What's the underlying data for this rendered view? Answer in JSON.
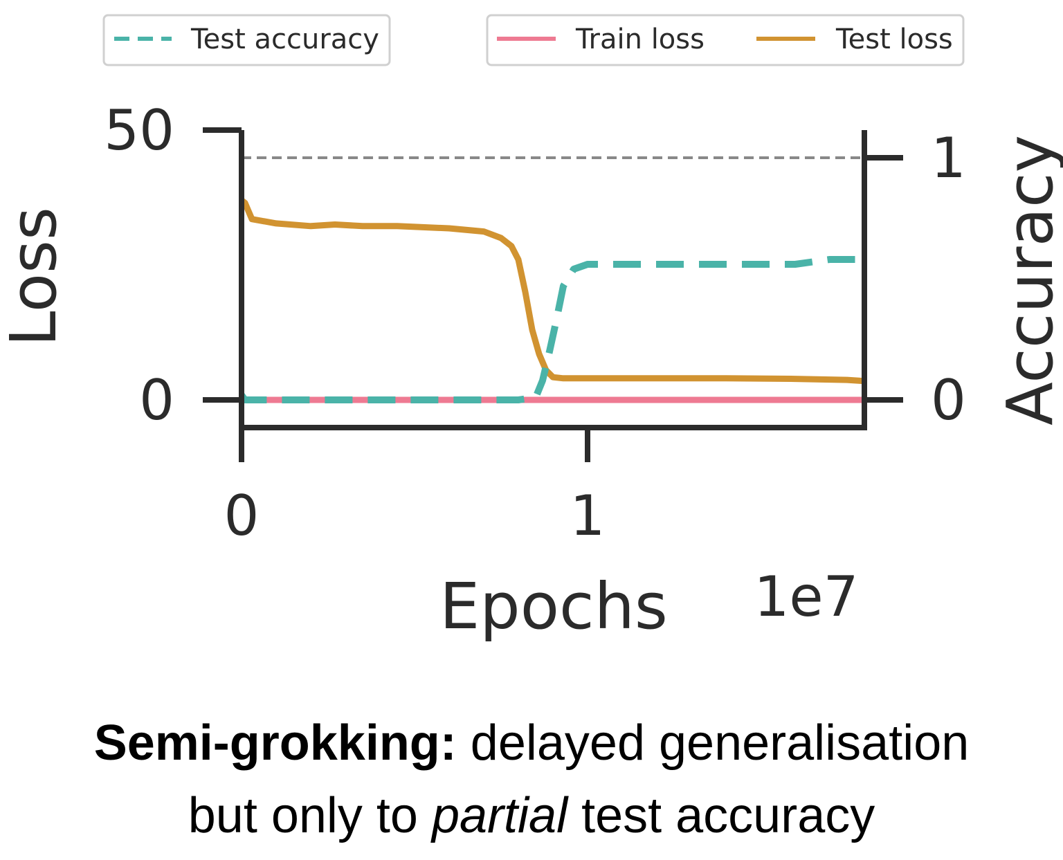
{
  "chart_data": {
    "type": "line",
    "xlabel": "Epochs",
    "x_offset_label": "1e7",
    "ylabel_left": "Loss",
    "ylabel_right": "Accuracy",
    "xlim": [
      0,
      1.8
    ],
    "ylim_left": [
      -5,
      50
    ],
    "ylim_right": [
      0,
      1.0
    ],
    "xticks": [
      0,
      1
    ],
    "yticks_left": [
      0,
      50
    ],
    "yticks_right": [
      0,
      1
    ],
    "reference_line": {
      "axis": "right",
      "value": 1.0,
      "style": "dashed",
      "color": "#888888"
    },
    "legend": [
      {
        "group": "left",
        "entries": [
          {
            "name": "Test accuracy",
            "style": "dashed",
            "color": "#4AB3A8"
          }
        ]
      },
      {
        "group": "right",
        "entries": [
          {
            "name": "Train loss",
            "style": "solid",
            "color": "#EE7A92"
          },
          {
            "name": "Test loss",
            "style": "solid",
            "color": "#D19331"
          }
        ]
      }
    ],
    "series": [
      {
        "name": "Train loss",
        "axis": "left",
        "color": "#EE7A92",
        "style": "solid",
        "x": [
          0,
          0.2,
          0.4,
          0.6,
          0.8,
          1.0,
          1.2,
          1.4,
          1.6,
          1.8
        ],
        "y": [
          0,
          0,
          0,
          0,
          0,
          0,
          0,
          0,
          0,
          0
        ]
      },
      {
        "name": "Test loss",
        "axis": "left",
        "color": "#D19331",
        "style": "solid",
        "x": [
          0.0,
          0.01,
          0.03,
          0.1,
          0.2,
          0.27,
          0.35,
          0.45,
          0.6,
          0.7,
          0.75,
          0.78,
          0.8,
          0.82,
          0.84,
          0.86,
          0.88,
          0.9,
          0.93,
          1.0,
          1.2,
          1.4,
          1.6,
          1.75,
          1.8
        ],
        "y": [
          37.0,
          36.5,
          33.5,
          32.7,
          32.2,
          32.5,
          32.2,
          32.2,
          31.8,
          31.2,
          30.0,
          28.5,
          26.0,
          20.0,
          13.0,
          8.5,
          5.5,
          4.2,
          4.0,
          4.0,
          4.0,
          4.0,
          3.9,
          3.7,
          3.5
        ]
      },
      {
        "name": "Test accuracy",
        "axis": "right",
        "color": "#4AB3A8",
        "style": "dashed",
        "x": [
          0.0,
          0.01,
          0.03,
          0.1,
          0.3,
          0.5,
          0.7,
          0.8,
          0.85,
          0.87,
          0.89,
          0.91,
          0.93,
          0.96,
          1.0,
          1.1,
          1.3,
          1.5,
          1.6,
          1.7,
          1.8
        ],
        "y": [
          0.02,
          0.0,
          0.0,
          0.0,
          0.0,
          0.0,
          0.0,
          0.0,
          0.01,
          0.08,
          0.2,
          0.33,
          0.47,
          0.54,
          0.56,
          0.56,
          0.56,
          0.56,
          0.56,
          0.58,
          0.58
        ]
      }
    ]
  },
  "caption": {
    "bold_part": "Semi-grokking:",
    "rest_line1": " delayed generalisation",
    "line2_start": "but only to ",
    "line2_italic": "partial",
    "line2_end": " test accuracy"
  }
}
